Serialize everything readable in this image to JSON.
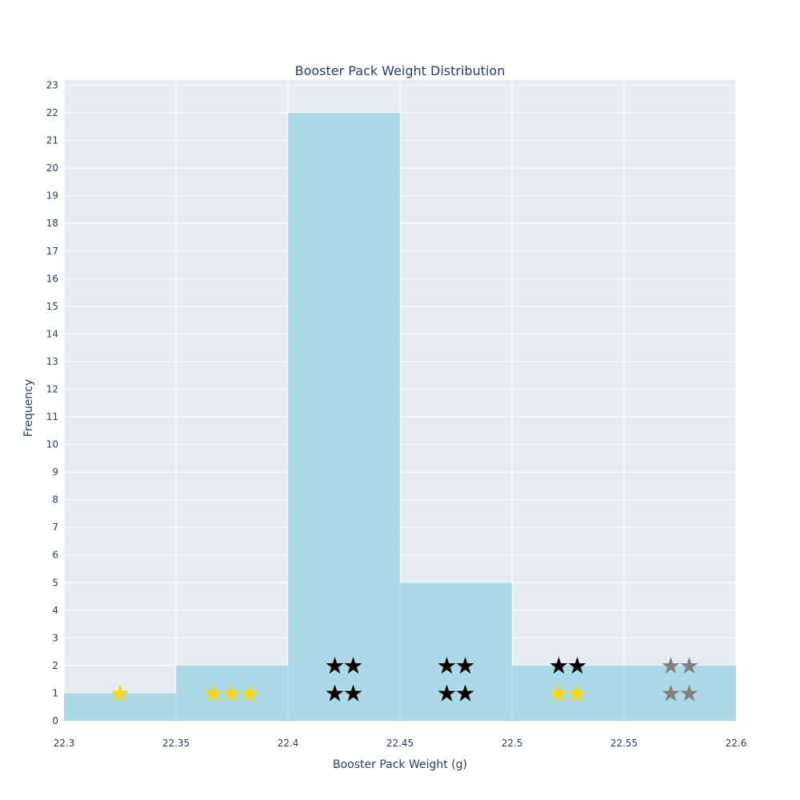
{
  "chart_data": {
    "type": "bar",
    "title": "Booster Pack Weight Distribution",
    "xlabel": "Booster Pack Weight (g)",
    "ylabel": "Frequency",
    "xlim": [
      22.3,
      22.6
    ],
    "ylim": [
      0,
      23
    ],
    "x_ticks": [
      "22.3",
      "22.35",
      "22.4",
      "22.45",
      "22.5",
      "22.55",
      "22.6"
    ],
    "x_tick_values": [
      22.3,
      22.35,
      22.4,
      22.45,
      22.5,
      22.55,
      22.6
    ],
    "y_ticks": [
      0,
      1,
      2,
      3,
      4,
      5,
      6,
      7,
      8,
      9,
      10,
      11,
      12,
      13,
      14,
      15,
      16,
      17,
      18,
      19,
      20,
      21,
      22,
      23
    ],
    "bins": [
      {
        "start": 22.3,
        "end": 22.35,
        "count": 1
      },
      {
        "start": 22.35,
        "end": 22.4,
        "count": 2
      },
      {
        "start": 22.4,
        "end": 22.45,
        "count": 22
      },
      {
        "start": 22.45,
        "end": 22.5,
        "count": 5
      },
      {
        "start": 22.5,
        "end": 22.55,
        "count": 2
      },
      {
        "start": 22.55,
        "end": 22.6,
        "count": 2
      }
    ],
    "bar_color": "#add8e6",
    "grid": true,
    "plot_bgcolor": "#e5ecf6",
    "star_markers": [
      {
        "x": 22.325,
        "y": 1,
        "count": 1,
        "color": "#ffd700"
      },
      {
        "x": 22.375,
        "y": 1,
        "count": 3,
        "color": "#ffd700"
      },
      {
        "x": 22.425,
        "y": 1,
        "count": 2,
        "color": "#000000"
      },
      {
        "x": 22.425,
        "y": 2,
        "count": 2,
        "color": "#000000"
      },
      {
        "x": 22.475,
        "y": 1,
        "count": 2,
        "color": "#000000"
      },
      {
        "x": 22.475,
        "y": 2,
        "count": 2,
        "color": "#000000"
      },
      {
        "x": 22.525,
        "y": 1,
        "count": 2,
        "color": "#ffd700"
      },
      {
        "x": 22.525,
        "y": 2,
        "count": 2,
        "color": "#000000"
      },
      {
        "x": 22.575,
        "y": 1,
        "count": 2,
        "color": "#808080"
      },
      {
        "x": 22.575,
        "y": 2,
        "count": 2,
        "color": "#808080"
      }
    ],
    "star_glyph": "★"
  }
}
